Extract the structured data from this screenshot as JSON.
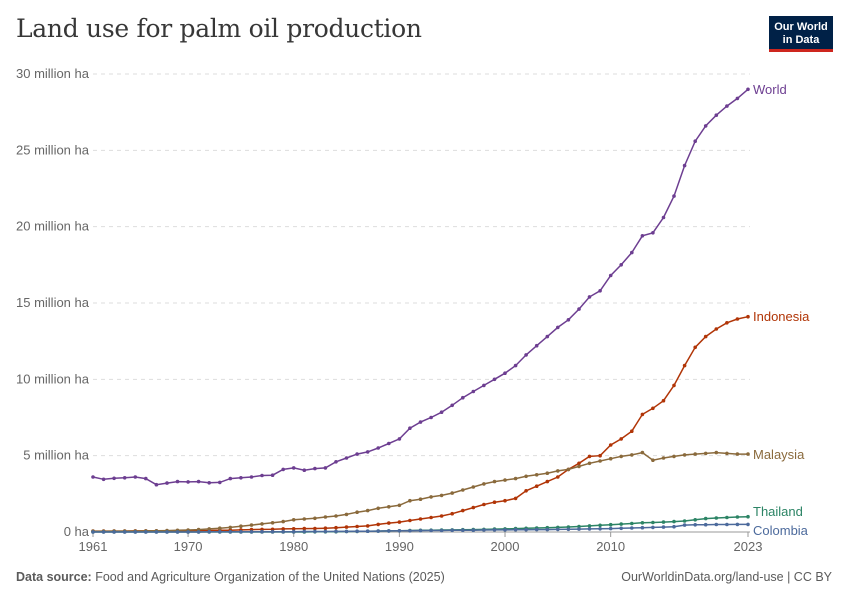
{
  "header": {
    "title": "Land use for palm oil production",
    "logo_line1": "Our World",
    "logo_line2": "in Data"
  },
  "footer": {
    "source_label": "Data source:",
    "source_text": "Food and Agriculture Organization of the United Nations (2025)",
    "url_text": "OurWorldinData.org/land-use | CC BY"
  },
  "chart_data": {
    "type": "line",
    "title": "Land use for palm oil production",
    "xlabel": "",
    "ylabel": "",
    "xlim": [
      1961,
      2023
    ],
    "ylim": [
      0,
      30
    ],
    "x_tick_labels": [
      "1961",
      "1970",
      "1980",
      "1990",
      "2000",
      "2010",
      "2023"
    ],
    "x_ticks": [
      1961,
      1970,
      1980,
      1990,
      2000,
      2010,
      2023
    ],
    "y_ticks": [
      0,
      5,
      10,
      15,
      20,
      25,
      30
    ],
    "y_tick_labels": [
      "0 ha",
      "5 million ha",
      "10 million ha",
      "15 million ha",
      "20 million ha",
      "25 million ha",
      "30 million ha"
    ],
    "grid": "horizontal-dashed",
    "legend": "inline-right",
    "start_year": 1961,
    "series": [
      {
        "name": "World",
        "color": "#6d3e91",
        "values": [
          3.6,
          3.45,
          3.52,
          3.55,
          3.6,
          3.5,
          3.1,
          3.2,
          3.3,
          3.28,
          3.3,
          3.22,
          3.25,
          3.5,
          3.55,
          3.6,
          3.7,
          3.72,
          4.1,
          4.2,
          4.05,
          4.15,
          4.2,
          4.6,
          4.85,
          5.1,
          5.25,
          5.5,
          5.8,
          6.1,
          6.8,
          7.2,
          7.5,
          7.85,
          8.3,
          8.8,
          9.2,
          9.6,
          10.0,
          10.4,
          10.9,
          11.6,
          12.2,
          12.8,
          13.4,
          13.9,
          14.6,
          15.4,
          15.8,
          16.8,
          17.5,
          18.3,
          19.4,
          19.6,
          20.6,
          22.0,
          24.0,
          25.6,
          26.6,
          27.3,
          27.9,
          28.4,
          29.0
        ]
      },
      {
        "name": "Indonesia",
        "color": "#b13507",
        "values": [
          0.06,
          0.06,
          0.06,
          0.06,
          0.07,
          0.07,
          0.07,
          0.07,
          0.08,
          0.08,
          0.09,
          0.1,
          0.11,
          0.12,
          0.14,
          0.16,
          0.17,
          0.18,
          0.2,
          0.21,
          0.22,
          0.23,
          0.25,
          0.28,
          0.32,
          0.36,
          0.4,
          0.5,
          0.58,
          0.65,
          0.75,
          0.85,
          0.95,
          1.05,
          1.2,
          1.4,
          1.6,
          1.8,
          1.95,
          2.05,
          2.2,
          2.7,
          3.0,
          3.3,
          3.6,
          4.1,
          4.5,
          4.95,
          5.0,
          5.7,
          6.1,
          6.6,
          7.7,
          8.1,
          8.6,
          9.6,
          10.9,
          12.1,
          12.8,
          13.3,
          13.7,
          13.95,
          14.1
        ]
      },
      {
        "name": "Malaysia",
        "color": "#8a6a3c",
        "values": [
          0.05,
          0.05,
          0.06,
          0.06,
          0.06,
          0.07,
          0.08,
          0.09,
          0.11,
          0.13,
          0.16,
          0.2,
          0.25,
          0.3,
          0.38,
          0.45,
          0.53,
          0.6,
          0.68,
          0.8,
          0.85,
          0.9,
          0.98,
          1.05,
          1.15,
          1.3,
          1.4,
          1.55,
          1.65,
          1.75,
          2.05,
          2.15,
          2.3,
          2.4,
          2.55,
          2.75,
          2.95,
          3.15,
          3.3,
          3.4,
          3.5,
          3.65,
          3.75,
          3.85,
          4.0,
          4.1,
          4.3,
          4.5,
          4.65,
          4.8,
          4.95,
          5.05,
          5.2,
          4.7,
          4.85,
          4.95,
          5.05,
          5.1,
          5.15,
          5.2,
          5.15,
          5.1,
          5.1
        ]
      },
      {
        "name": "Thailand",
        "color": "#2c8465",
        "values": [
          0.0,
          0.0,
          0.0,
          0.0,
          0.0,
          0.0,
          0.0,
          0.0,
          0.0,
          0.0,
          0.0,
          0.0,
          0.0,
          0.0,
          0.0,
          0.0,
          0.0,
          0.0,
          0.0,
          0.0,
          0.0,
          0.01,
          0.01,
          0.02,
          0.03,
          0.04,
          0.05,
          0.06,
          0.07,
          0.08,
          0.1,
          0.11,
          0.12,
          0.13,
          0.14,
          0.15,
          0.16,
          0.17,
          0.19,
          0.2,
          0.22,
          0.24,
          0.26,
          0.28,
          0.3,
          0.33,
          0.36,
          0.4,
          0.44,
          0.48,
          0.52,
          0.56,
          0.6,
          0.62,
          0.65,
          0.68,
          0.72,
          0.8,
          0.88,
          0.92,
          0.95,
          0.98,
          1.0
        ]
      },
      {
        "name": "Colombia",
        "color": "#4c6a9c",
        "values": [
          0.0,
          0.0,
          0.0,
          0.0,
          0.0,
          0.0,
          0.0,
          0.0,
          0.0,
          0.0,
          0.0,
          0.01,
          0.01,
          0.01,
          0.01,
          0.01,
          0.02,
          0.02,
          0.02,
          0.02,
          0.03,
          0.03,
          0.03,
          0.04,
          0.04,
          0.05,
          0.05,
          0.06,
          0.07,
          0.08,
          0.08,
          0.09,
          0.1,
          0.1,
          0.11,
          0.12,
          0.12,
          0.13,
          0.14,
          0.14,
          0.15,
          0.15,
          0.16,
          0.16,
          0.17,
          0.18,
          0.19,
          0.2,
          0.21,
          0.22,
          0.24,
          0.26,
          0.28,
          0.3,
          0.32,
          0.35,
          0.45,
          0.47,
          0.48,
          0.49,
          0.49,
          0.5,
          0.5
        ]
      }
    ]
  }
}
